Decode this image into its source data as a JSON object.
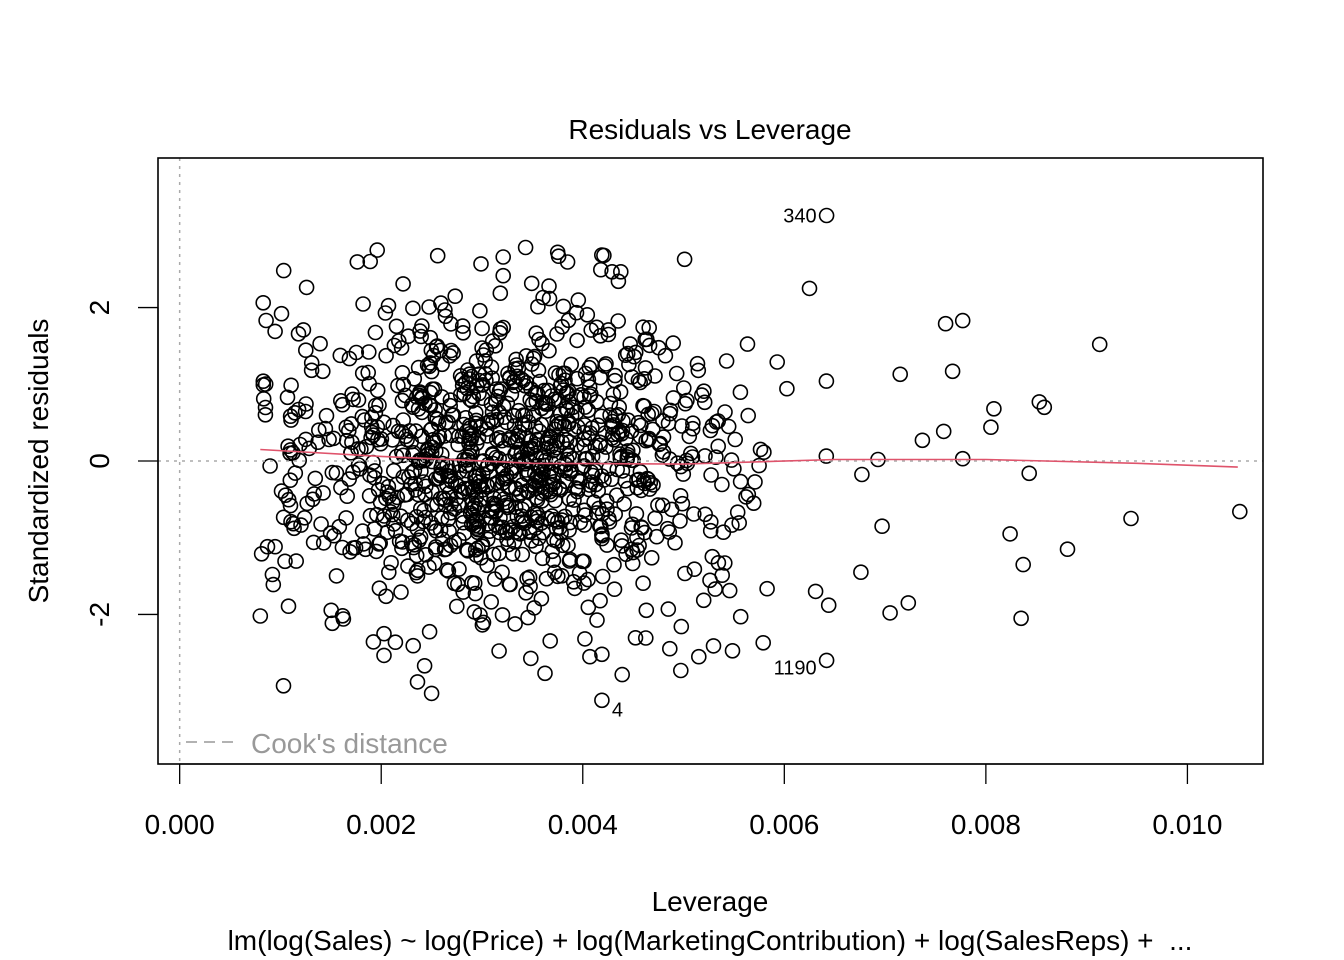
{
  "chart_data": {
    "type": "scatter",
    "title": "Residuals vs Leverage",
    "xlabel": "Leverage",
    "ylabel": "Standardized residuals",
    "subtitle": "lm(log(Sales) ~ log(Price) + log(MarketingContribution) + log(SalesReps) +  ...",
    "xlim": [
      -0.000215,
      0.01075
    ],
    "ylim": [
      -3.95,
      3.95
    ],
    "x_ticks": [
      0.0,
      0.002,
      0.004,
      0.006,
      0.008,
      0.01
    ],
    "x_tick_labels": [
      "0.000",
      "0.002",
      "0.004",
      "0.006",
      "0.008",
      "0.010"
    ],
    "y_ticks": [
      -2,
      0,
      2
    ],
    "y_tick_labels": [
      "-2",
      "0",
      "2"
    ],
    "grid": false,
    "legend": {
      "position": "bottom-left",
      "entries": [
        "Cook's distance"
      ],
      "style": "dashed",
      "color": "#999999"
    },
    "reference_lines": {
      "h0": 0,
      "v0": 0,
      "color": "#aaaaaa",
      "style": "dotted"
    },
    "series": [
      {
        "name": "observations",
        "marker": "open-circle",
        "color": "#000000",
        "n_approx": 1200,
        "cluster": {
          "x_mean": 0.0033,
          "x_sd": 0.0011,
          "y_sd": 1.0,
          "x_min": 0.0008,
          "x_max": 0.0095
        },
        "points": [
          {
            "x": 0.00642,
            "y": 3.2,
            "label": "340"
          },
          {
            "x": 0.00642,
            "y": -2.6,
            "label": "1190"
          },
          {
            "x": 0.00419,
            "y": -3.12,
            "label": "4"
          },
          {
            "x": 0.00196,
            "y": 2.75
          },
          {
            "x": 0.00299,
            "y": 2.57
          },
          {
            "x": 0.00321,
            "y": 2.66
          },
          {
            "x": 0.00376,
            "y": 2.67
          },
          {
            "x": 0.00421,
            "y": 2.68
          },
          {
            "x": 0.00501,
            "y": 2.63
          },
          {
            "x": 0.00625,
            "y": 2.25
          },
          {
            "x": 0.00913,
            "y": 1.52
          },
          {
            "x": 0.00777,
            "y": 1.83
          },
          {
            "x": 0.0076,
            "y": 1.79
          },
          {
            "x": 0.00767,
            "y": 1.17
          },
          {
            "x": 0.00715,
            "y": 1.13
          },
          {
            "x": 0.00853,
            "y": 0.77
          },
          {
            "x": 0.00858,
            "y": 0.7
          },
          {
            "x": 0.00808,
            "y": 0.68
          },
          {
            "x": 0.00805,
            "y": 0.44
          },
          {
            "x": 0.00737,
            "y": 0.27
          },
          {
            "x": 0.00777,
            "y": 0.03
          },
          {
            "x": 0.00843,
            "y": -0.16
          },
          {
            "x": 0.01052,
            "y": -0.66
          },
          {
            "x": 0.00944,
            "y": -0.75
          },
          {
            "x": 0.00824,
            "y": -0.95
          },
          {
            "x": 0.00881,
            "y": -1.15
          },
          {
            "x": 0.00837,
            "y": -1.35
          },
          {
            "x": 0.00835,
            "y": -2.05
          },
          {
            "x": 0.00723,
            "y": -1.85
          },
          {
            "x": 0.00705,
            "y": -1.98
          },
          {
            "x": 0.00644,
            "y": -1.88
          },
          {
            "x": 0.00631,
            "y": -1.7
          },
          {
            "x": 0.00579,
            "y": -2.37
          },
          {
            "x": 0.00103,
            "y": -2.93
          },
          {
            "x": 0.0008,
            "y": -2.02
          },
          {
            "x": 0.00236,
            "y": -2.88
          },
          {
            "x": 0.0025,
            "y": -3.03
          },
          {
            "x": 0.00243,
            "y": -2.67
          },
          {
            "x": 0.00419,
            "y": -2.52
          },
          {
            "x": 0.00083,
            "y": 1.04
          },
          {
            "x": 0.00092,
            "y": -1.48
          },
          {
            "x": 0.00697,
            "y": -0.85
          },
          {
            "x": 0.00676,
            "y": -1.45
          },
          {
            "x": 0.00693,
            "y": 0.02
          }
        ]
      }
    ],
    "smoother": {
      "name": "lowess",
      "color": "#df536b",
      "x": [
        0.0008,
        0.002,
        0.0035,
        0.005,
        0.0065,
        0.008,
        0.0095,
        0.0105
      ],
      "y": [
        0.15,
        0.06,
        -0.03,
        -0.04,
        0.02,
        0.02,
        -0.03,
        -0.08
      ]
    }
  }
}
